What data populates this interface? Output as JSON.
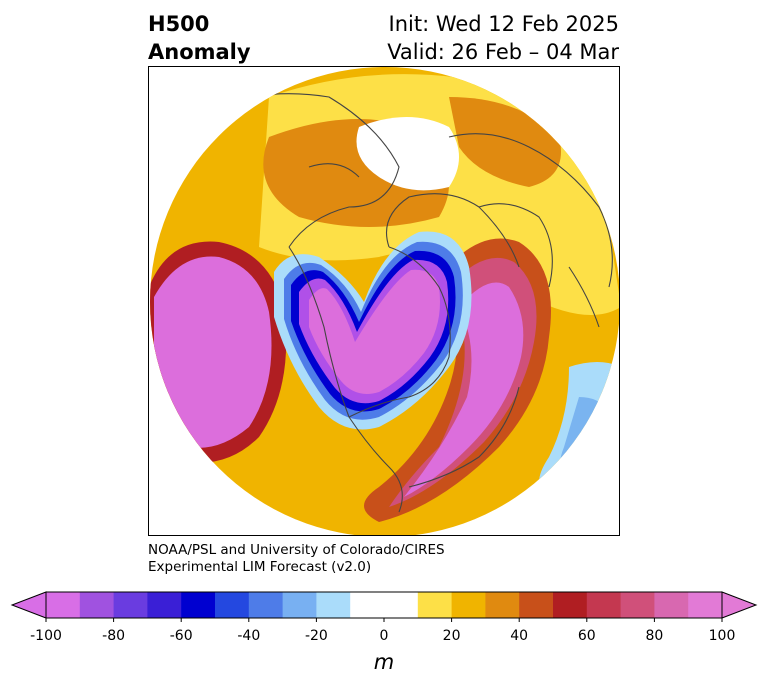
{
  "title": {
    "left_line1": "H500",
    "left_line2": "Anomaly",
    "right_line1": "Init: Wed 12 Feb 2025",
    "right_line2": "Valid: 26 Feb – 04 Mar"
  },
  "credit": {
    "line1": "NOAA/PSL and University of Colorado/CIRES",
    "line2": "Experimental LIM Forecast (v2.0)"
  },
  "colorbar": {
    "unit": "m",
    "ticks": [
      "-100",
      "-80",
      "-60",
      "-40",
      "-20",
      "0",
      "20",
      "40",
      "60",
      "80",
      "100"
    ],
    "colors": [
      "#d86ee6",
      "#a052e0",
      "#6a3ce0",
      "#3a1fd6",
      "#0000d0",
      "#2448e0",
      "#4e7ce8",
      "#78b0f2",
      "#aadcfa",
      "#ffffff",
      "#ffffff",
      "#fde047",
      "#f0b400",
      "#e08a10",
      "#c8501a",
      "#b01e22",
      "#c43850",
      "#d0507a",
      "#d868b0",
      "#e27ad6"
    ],
    "under_color": "#d86ee6",
    "over_color": "#e27ad6"
  },
  "map": {
    "projection": "north-polar stereographic",
    "colors": {
      "neg_strong": "#dc6edc",
      "neg_purple": "#b050e8",
      "neg_blue": "#1a2adc",
      "neg_light": "#7ab4f0",
      "neg_pale": "#aadcfa",
      "pos_yellow": "#fde047",
      "pos_gold": "#f0b400",
      "pos_orange": "#e08a10",
      "pos_red": "#b01e22",
      "pos_pink": "#d0507a",
      "coast": "#444444"
    }
  }
}
